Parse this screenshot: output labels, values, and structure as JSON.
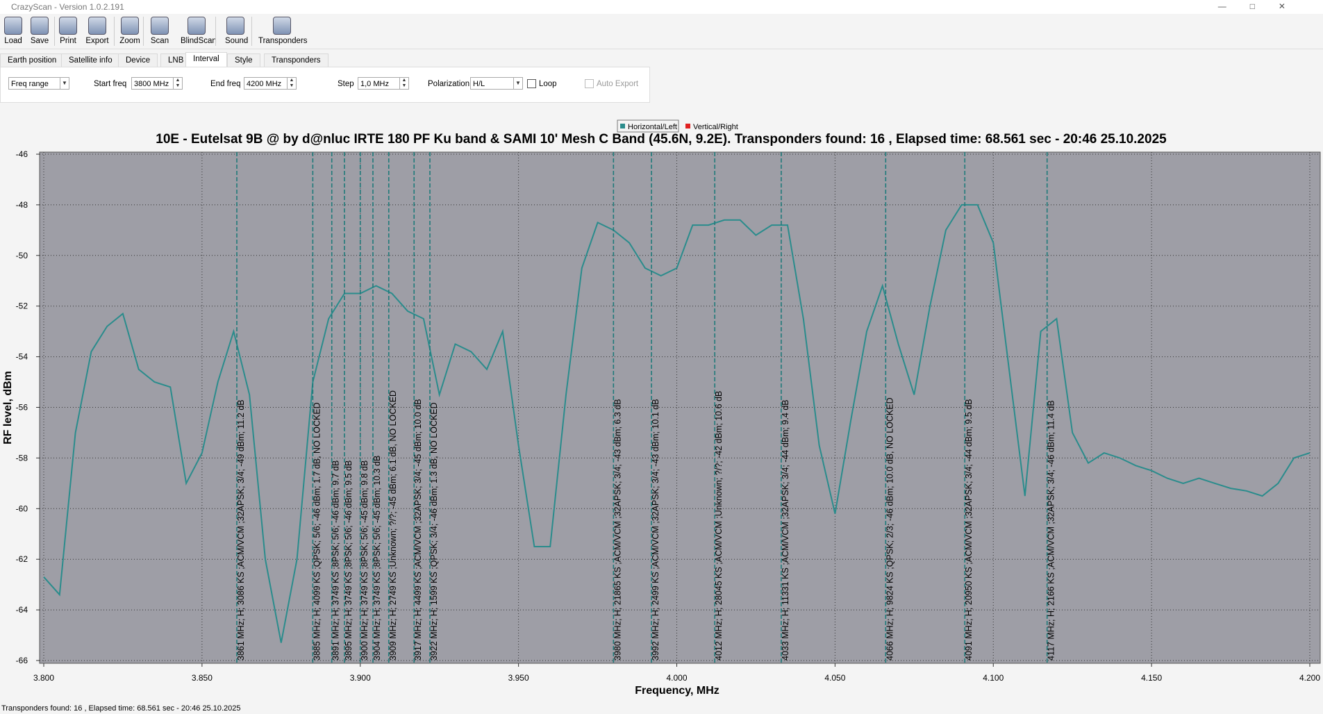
{
  "window": {
    "title": "CrazyScan - Version 1.0.2.191"
  },
  "toolbar": [
    "Load",
    "Save",
    "Print",
    "Export",
    "Zoom",
    "Scan",
    "BlindScan",
    "Sound",
    "Transponders"
  ],
  "tabs": [
    "Earth position",
    "Satellite info",
    "Device",
    "LNB",
    "Interval",
    "Style",
    "Transponders"
  ],
  "controls": {
    "mode": "Freq range",
    "start_label": "Start freq",
    "start_value": "3800 MHz",
    "end_label": "End freq",
    "end_value": "4200 MHz",
    "step_label": "Step",
    "step_value": "1,0 MHz",
    "pol_label": "Polarization",
    "pol_value": "H/L",
    "loop": "Loop",
    "auto_export": "Auto Export"
  },
  "status": "Transponders found: 16 , Elapsed time: 68.561 sec - 20:46 25.10.2025",
  "chart_data": {
    "type": "line",
    "title": "10E - Eutelsat 9B @ by d@nluc IRTE 180 PF Ku band & SAMI 10' Mesh C Band (45.6N, 9.2E). Transponders found: 16 , Elapsed time: 68.561 sec - 20:46 25.10.2025",
    "x_label": "Frequency, MHz",
    "y_label": "RF level, dBm",
    "x": [
      3800,
      3805,
      3810,
      3815,
      3820,
      3825,
      3830,
      3835,
      3840,
      3845,
      3850,
      3855,
      3860,
      3865,
      3870,
      3875,
      3880,
      3885,
      3890,
      3895,
      3900,
      3905,
      3910,
      3915,
      3920,
      3925,
      3930,
      3935,
      3940,
      3945,
      3950,
      3955,
      3960,
      3965,
      3970,
      3975,
      3980,
      3985,
      3990,
      3995,
      4000,
      4005,
      4010,
      4015,
      4020,
      4025,
      4030,
      4035,
      4040,
      4045,
      4050,
      4055,
      4060,
      4065,
      4070,
      4075,
      4080,
      4085,
      4090,
      4095,
      4100,
      4105,
      4110,
      4115,
      4120,
      4125,
      4130,
      4135,
      4140,
      4145,
      4150,
      4155,
      4160,
      4165,
      4170,
      4175,
      4180,
      4185,
      4190,
      4195,
      4200
    ],
    "series": [
      {
        "name": "Horizontal/Left",
        "color": "#2a8c8c",
        "values": [
          -62.7,
          -63.4,
          -57,
          -53.8,
          -52.8,
          -52.3,
          -54.5,
          -55,
          -55.2,
          -59,
          -57.8,
          -55,
          -53,
          -55.5,
          -62,
          -65.3,
          -62,
          -55,
          -52.5,
          -51.5,
          -51.5,
          -51.2,
          -51.5,
          -52.2,
          -52.5,
          -55.5,
          -53.5,
          -53.8,
          -54.5,
          -53,
          -57.5,
          -61.5,
          -61.5,
          -55.5,
          -50.5,
          -48.7,
          -49,
          -49.5,
          -50.5,
          -50.8,
          -50.5,
          -48.8,
          -48.8,
          -48.6,
          -48.6,
          -49.2,
          -48.8,
          -48.8,
          -52.5,
          -57.5,
          -60.2,
          -56.5,
          -53,
          -51.2,
          -53.5,
          -55.5,
          -52,
          -49,
          -48,
          -48,
          -49.5,
          -54.5,
          -59.5,
          -53,
          -52.5,
          -57,
          -58.2,
          -57.8,
          -58,
          -58.3,
          -58.5,
          -58.8,
          -59,
          -58.8,
          -59,
          -59.2,
          -59.3,
          -59.5,
          -59,
          -58,
          -57.8
        ]
      },
      {
        "name": "Vertical/Right",
        "color": "#e02020",
        "values": [
          null,
          null,
          null,
          null,
          null,
          null,
          null,
          null,
          null,
          null,
          null,
          null,
          null,
          null,
          null,
          null,
          null,
          null,
          null,
          null,
          null,
          null,
          null,
          null,
          null,
          null,
          null,
          null,
          null,
          null,
          null,
          null,
          null,
          null,
          null,
          null,
          null,
          null,
          null,
          null,
          null,
          null,
          null,
          null,
          null,
          null,
          null,
          null,
          null,
          null,
          null,
          null,
          null,
          null,
          null,
          null,
          null,
          null,
          null,
          null,
          null,
          null,
          null,
          null,
          null,
          null,
          null,
          null,
          null,
          null,
          null,
          null,
          null,
          null,
          null,
          null,
          null,
          null,
          null,
          null,
          null
        ]
      }
    ],
    "markers": [
      {
        "x": 3861,
        "label": "3861 MHz; H; 3086 KS ;ACM/VCM ;32APSK; 3/4; -49 dBm; 11.2 dB"
      },
      {
        "x": 3885,
        "label": "3885 MHz; H; 4099 KS ;QPSK; 5/6; -46 dBm; 1.7 dB, NO LOCKED"
      },
      {
        "x": 3891,
        "label": "3891 MHz; H; 3749 KS ;8PSK; 5/6; -46 dBm; 9.7 dB"
      },
      {
        "x": 3895,
        "label": "3895 MHz; H; 3749 KS ;8PSK; 5/6; -46 dBm; 9.5 dB"
      },
      {
        "x": 3900,
        "label": "3900 MHz; H; 3749 KS ;8PSK; 5/6; -45 dBm; 9.8 dB"
      },
      {
        "x": 3904,
        "label": "3904 MHz; H; 3749 KS ;8PSK; 5/6; -45 dBm; 10.3 dB"
      },
      {
        "x": 3909,
        "label": "3909 MHz; H; 2749 KS ;Unknown; ?/?; -45 dBm; 6.1 dB, NO LOCKED"
      },
      {
        "x": 3917,
        "label": "3917 MHz; H; 4499 KS ;ACM/VCM ;32APSK; 3/4; -45 dBm; 10.0 dB"
      },
      {
        "x": 3922,
        "label": "3922 MHz; H; 1599 KS ;QPSK; 3/4; -46 dBm; 1.3 dB, NO LOCKED"
      },
      {
        "x": 3980,
        "label": "3980 MHz; H; 21865 KS ;ACM/VCM ;32APSK; 3/4; -43 dBm; 6.3 dB"
      },
      {
        "x": 3992,
        "label": "3992 MHz; H; 2499 KS ;ACM/VCM ;32APSK; 3/4; -43 dBm; 10.1 dB"
      },
      {
        "x": 4012,
        "label": "4012 MHz; H; 28045 KS ;ACM/VCM ;Unknown; ?/?; -42 dBm; 10.6 dB"
      },
      {
        "x": 4033,
        "label": "4033 MHz; H; 11331 KS ;ACM/VCM ;32APSK; 3/4; -44 dBm; 9.4 dB"
      },
      {
        "x": 4066,
        "label": "4066 MHz; H; 9824 KS ;QPSK; 2/3; -46 dBm; 10.0 dB, NO LOCKED"
      },
      {
        "x": 4091,
        "label": "4091 MHz; H; 20950 KS ;ACM/VCM ;32APSK; 3/4; -44 dBm; 9.5 dB"
      },
      {
        "x": 4117,
        "label": "4117 MHz; H; 2166 KS ;ACM/VCM ;32APSK; 3/4; -46 dBm; 11.4 dB"
      }
    ],
    "xlim": [
      3800,
      4200
    ],
    "xticks": [
      {
        "value": 3800,
        "label": "3.800"
      },
      {
        "value": 3850,
        "label": "3.850"
      },
      {
        "value": 3900,
        "label": "3.900"
      },
      {
        "value": 3950,
        "label": "3.950"
      },
      {
        "value": 4000,
        "label": "4.000"
      },
      {
        "value": 4050,
        "label": "4.050"
      },
      {
        "value": 4100,
        "label": "4.100"
      },
      {
        "value": 4150,
        "label": "4.150"
      },
      {
        "value": 4200,
        "label": "4.200"
      }
    ],
    "ylim": [
      -66,
      -46
    ],
    "yticks": [
      -66,
      -64,
      -62,
      -60,
      -58,
      -56,
      -54,
      -52,
      -50,
      -48,
      -46
    ],
    "grid": true,
    "legend": "top"
  }
}
